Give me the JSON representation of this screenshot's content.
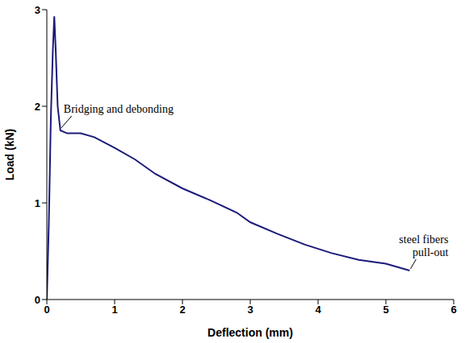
{
  "chart_data": {
    "type": "line",
    "x_label": "Deflection (mm)",
    "y_label": "Load (kN)",
    "x": [
      0,
      0.03,
      0.06,
      0.09,
      0.11,
      0.13,
      0.16,
      0.2,
      0.3,
      0.5,
      0.7,
      1.0,
      1.3,
      1.6,
      2.0,
      2.4,
      2.8,
      3.0,
      3.4,
      3.8,
      4.2,
      4.6,
      5.0,
      5.35
    ],
    "values": [
      0,
      0.8,
      1.9,
      2.6,
      2.93,
      2.6,
      2.0,
      1.75,
      1.72,
      1.72,
      1.68,
      1.57,
      1.45,
      1.3,
      1.15,
      1.03,
      0.9,
      0.8,
      0.68,
      0.57,
      0.48,
      0.41,
      0.37,
      0.3
    ],
    "color": "#1a1a7a",
    "xlim": [
      0,
      6
    ],
    "xticks": [
      0,
      1,
      2,
      3,
      4,
      5,
      6
    ],
    "ylim": [
      0,
      3
    ],
    "yticks": [
      0,
      1,
      2,
      3
    ],
    "grid": false,
    "marker": "none",
    "line_style": "solid",
    "annotations": [
      {
        "text": "Bridging and debonding",
        "x": 0.2,
        "y": 1.75
      },
      {
        "text": "steel fibers pull-out",
        "x": 5.35,
        "y": 0.3
      }
    ]
  }
}
